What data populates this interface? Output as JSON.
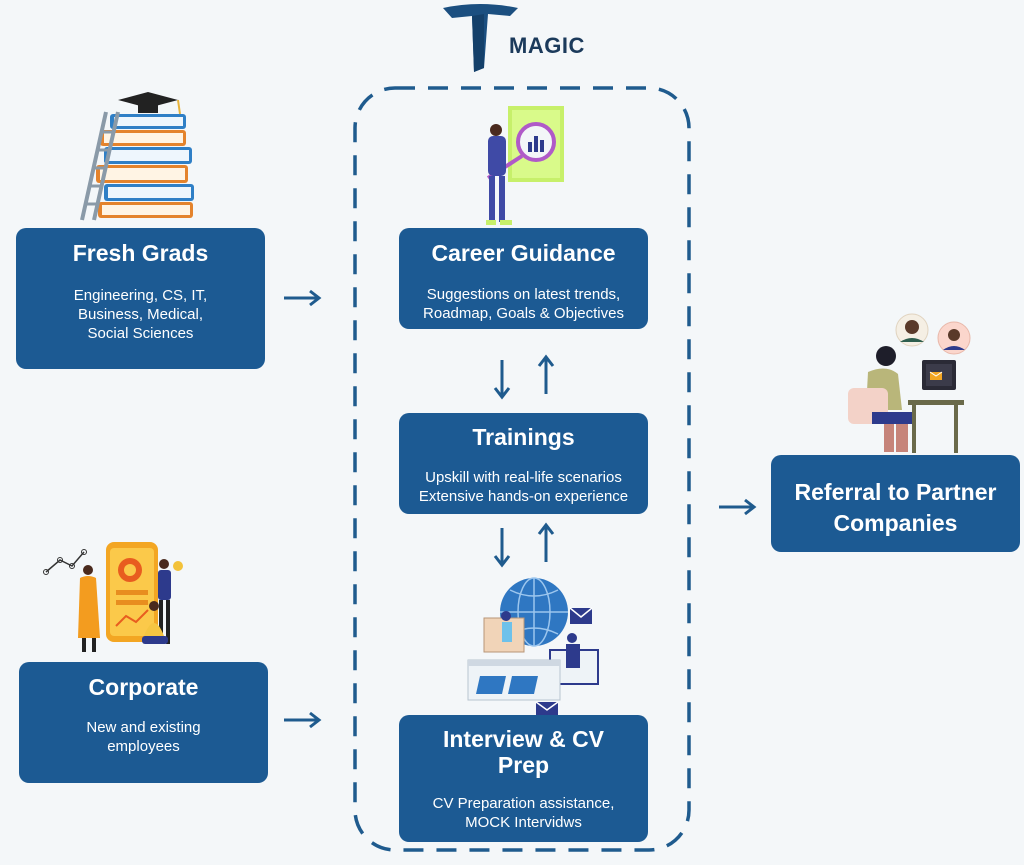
{
  "brand": {
    "name": "MAGIC"
  },
  "fresh_grads": {
    "title": "Fresh Grads",
    "lines": [
      "Engineering, CS, IT,",
      "Business, Medical,",
      "Social Sciences"
    ]
  },
  "corporate": {
    "title": "Corporate",
    "lines": [
      "New and existing",
      "employees"
    ]
  },
  "career_guidance": {
    "title": "Career Guidance",
    "lines": [
      "Suggestions on latest trends,",
      "Roadmap, Goals & Objectives"
    ]
  },
  "trainings": {
    "title": "Trainings",
    "lines": [
      "Upskill with real-life scenarios",
      "Extensive hands-on experience"
    ]
  },
  "interview_prep": {
    "title_lines": [
      "Interview & CV",
      "Prep"
    ],
    "lines": [
      "CV Preparation assistance,",
      "MOCK Intervidws"
    ]
  },
  "referral": {
    "title_lines": [
      "Referral to Partner",
      "Companies"
    ]
  },
  "colors": {
    "box": "#1c5a93",
    "accent": "#1f5b8e",
    "background": "#f4f7f9"
  }
}
